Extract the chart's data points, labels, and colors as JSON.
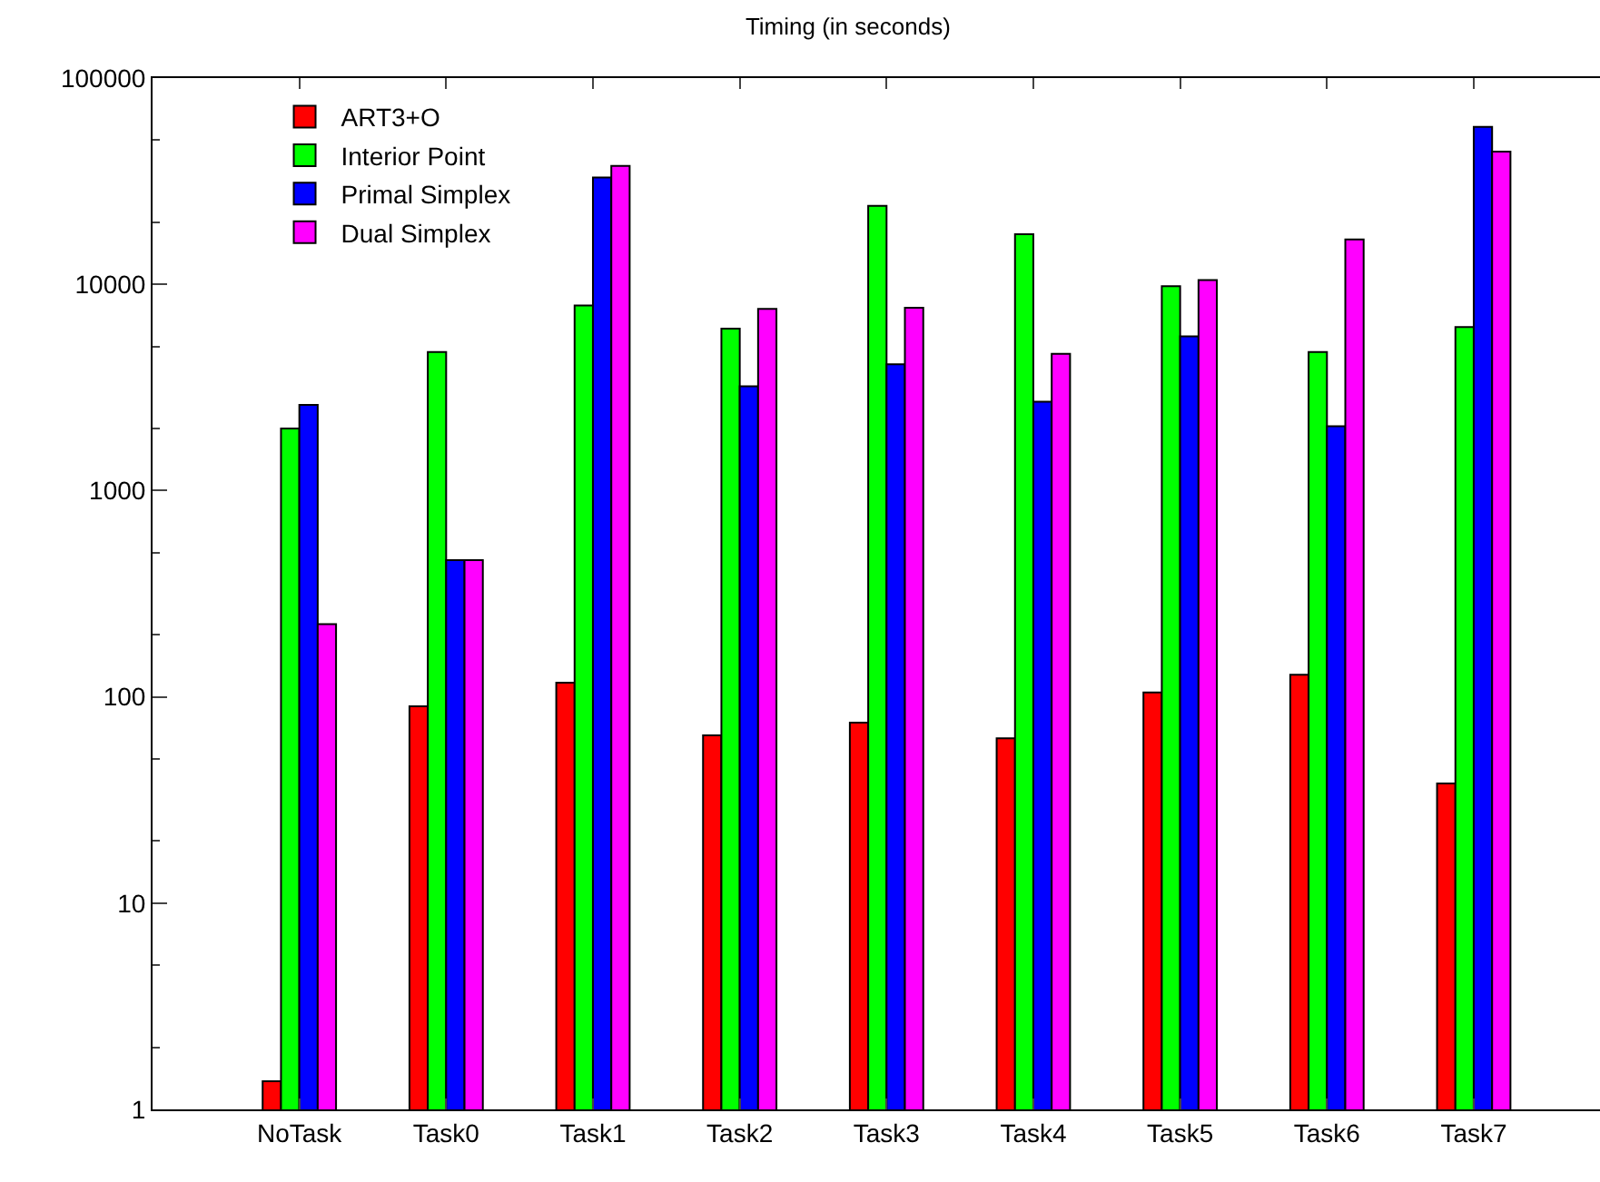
{
  "chart_data": {
    "type": "bar",
    "title": "Timing (in seconds)",
    "categories": [
      "NoTask",
      "Task0",
      "Task1",
      "Task2",
      "Task3",
      "Task4",
      "Task5",
      "Task6",
      "Task7"
    ],
    "series": [
      {
        "name": "ART3+O",
        "color": "#ff0000",
        "values": [
          1.37,
          90,
          117,
          65,
          75,
          63,
          105,
          128,
          38
        ]
      },
      {
        "name": "Interior Point",
        "color": "#00ff00",
        "values": [
          2000,
          4700,
          7900,
          6100,
          24000,
          17500,
          9800,
          4700,
          6200
        ]
      },
      {
        "name": "Primal Simplex",
        "color": "#0000ff",
        "values": [
          2600,
          460,
          33000,
          3200,
          4100,
          2700,
          5600,
          2050,
          58000
        ]
      },
      {
        "name": "Dual Simplex",
        "color": "#ff00ff",
        "values": [
          225,
          460,
          37500,
          7600,
          7700,
          4600,
          10500,
          16500,
          44000
        ]
      }
    ],
    "log": true,
    "ylim": [
      1,
      100000
    ],
    "yticks": [
      1,
      10,
      100,
      1000,
      10000,
      100000
    ],
    "grid": false,
    "legend": "top left"
  }
}
